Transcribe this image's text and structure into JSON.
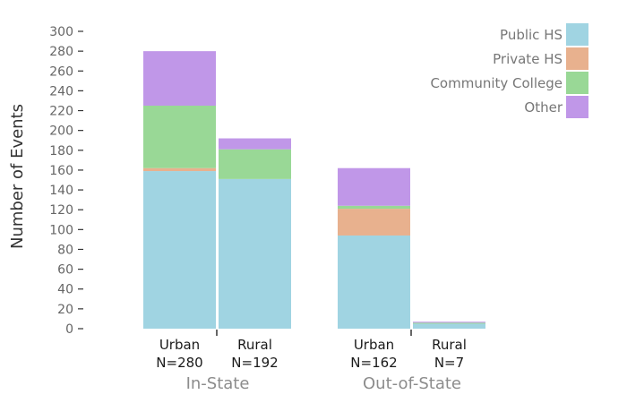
{
  "chart_data": {
    "type": "bar",
    "stacked": true,
    "title": "",
    "xlabel": "",
    "ylabel": "Number of Events",
    "ylim": [
      0,
      300
    ],
    "yticks": [
      0,
      20,
      40,
      60,
      80,
      100,
      120,
      140,
      160,
      180,
      200,
      220,
      240,
      260,
      280,
      300
    ],
    "grid": false,
    "legend_position": "top-right",
    "groups": [
      {
        "label": "In-State",
        "categories": [
          "Urban N=280",
          "Rural N=192"
        ]
      },
      {
        "label": "Out-of-State",
        "categories": [
          "Urban N=162",
          "Rural N=7"
        ]
      }
    ],
    "categories": [
      {
        "line1": "Urban",
        "line2": "N=280"
      },
      {
        "line1": "Rural",
        "line2": "N=192"
      },
      {
        "line1": "Urban",
        "line2": "N=162"
      },
      {
        "line1": "Rural",
        "line2": "N=7"
      }
    ],
    "series": [
      {
        "name": "Public HS",
        "color": "#a0d4e2",
        "values": [
          159,
          151,
          94,
          5
        ]
      },
      {
        "name": "Private HS",
        "color": "#e8b18e",
        "values": [
          3,
          0,
          27,
          0
        ]
      },
      {
        "name": "Community College",
        "color": "#99d896",
        "values": [
          63,
          30,
          3,
          1
        ]
      },
      {
        "name": "Other",
        "color": "#c097e8",
        "values": [
          55,
          11,
          38,
          1
        ]
      }
    ]
  }
}
